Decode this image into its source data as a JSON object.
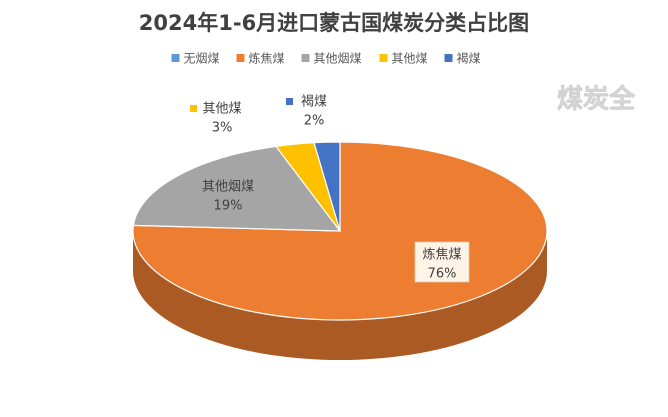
{
  "chart_data": {
    "type": "pie",
    "title": "2024年1-6月进口蒙古国煤炭分类占比图",
    "categories": [
      "无烟煤",
      "炼焦煤",
      "其他烟煤",
      "其他煤",
      "褐煤"
    ],
    "values": [
      0,
      76,
      19,
      3,
      2
    ],
    "value_labels": [
      null,
      "76%",
      "19%",
      "3%",
      "2%"
    ],
    "colors": [
      "#5b9bd5",
      "#ed7d31",
      "#a5a5a5",
      "#ffc000",
      "#4472c4"
    ],
    "legend": "top",
    "watermark": "煤炭全"
  }
}
